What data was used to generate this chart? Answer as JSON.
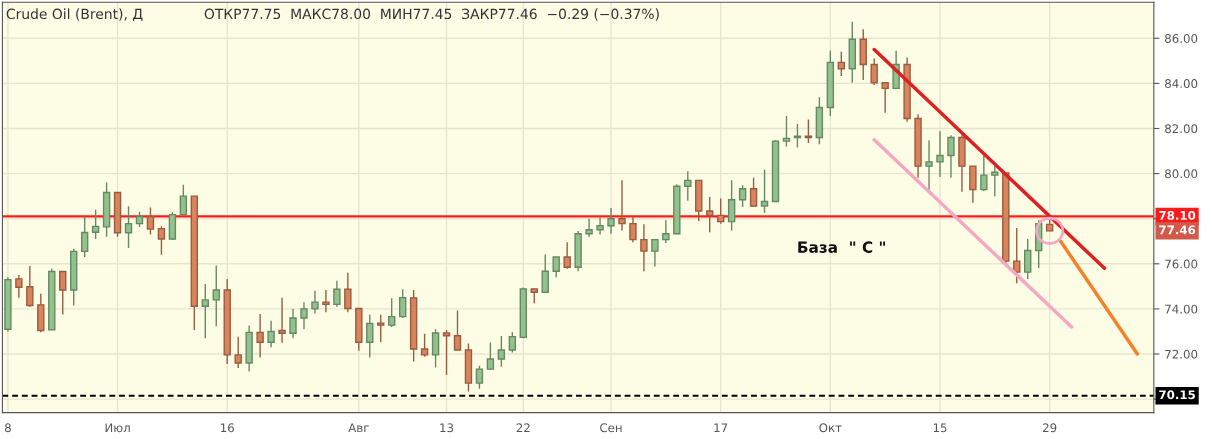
{
  "chart_data": {
    "type": "candlestick",
    "title": "Crude Oil (Brent), Д",
    "subtitle": "ОТКР77.75  МАКС78.00  МИН77.45  ЗАКР77.46  −0.29 (−0.37%)",
    "categories": [
      "8",
      null,
      null,
      null,
      null,
      null,
      null,
      null,
      null,
      null,
      "Июл",
      null,
      null,
      null,
      null,
      null,
      null,
      null,
      null,
      null,
      "16",
      null,
      null,
      null,
      null,
      null,
      null,
      null,
      null,
      null,
      null,
      null,
      "Авг",
      null,
      null,
      null,
      null,
      null,
      null,
      null,
      "13",
      null,
      null,
      null,
      null,
      null,
      null,
      "22",
      null,
      null,
      null,
      null,
      null,
      null,
      null,
      "Сен",
      null,
      null,
      null,
      null,
      null,
      null,
      null,
      null,
      null,
      "17",
      null,
      null,
      null,
      null,
      null,
      null,
      null,
      null,
      null,
      "Окт",
      null,
      null,
      null,
      null,
      null,
      null,
      null,
      null,
      null,
      "15",
      null,
      null,
      null,
      null,
      null,
      null,
      null,
      null,
      null,
      "29",
      null,
      null,
      null,
      null,
      null,
      null,
      null,
      null,
      null
    ],
    "ohlc": [
      [
        73.1,
        75.4,
        73.0,
        75.3
      ],
      [
        75.33,
        75.5,
        74.5,
        74.96
      ],
      [
        74.98,
        75.9,
        74.1,
        74.15
      ],
      [
        74.18,
        74.67,
        72.96,
        73.04
      ],
      [
        73.07,
        75.78,
        73.07,
        75.66
      ],
      [
        75.66,
        75.66,
        73.75,
        74.84
      ],
      [
        74.84,
        76.67,
        74.15,
        76.55
      ],
      [
        76.55,
        78.1,
        76.3,
        77.39
      ],
      [
        77.4,
        78.4,
        77.1,
        77.66
      ],
      [
        77.64,
        79.6,
        77.2,
        79.16
      ],
      [
        79.16,
        79.16,
        77.2,
        77.38
      ],
      [
        77.38,
        78.55,
        76.7,
        77.78
      ],
      [
        77.78,
        78.3,
        77.63,
        78.1
      ],
      [
        78.1,
        78.5,
        77.3,
        77.54
      ],
      [
        77.56,
        77.66,
        76.4,
        77.1
      ],
      [
        77.1,
        78.3,
        77.07,
        78.18
      ],
      [
        78.18,
        79.5,
        78.18,
        79.0
      ],
      [
        79.0,
        79.0,
        73.07,
        74.12
      ],
      [
        74.12,
        75.1,
        72.7,
        74.4
      ],
      [
        74.4,
        75.93,
        73.23,
        74.84
      ],
      [
        74.84,
        75.33,
        71.56,
        71.96
      ],
      [
        71.96,
        72.77,
        71.38,
        71.6
      ],
      [
        71.6,
        73.26,
        71.23,
        72.96
      ],
      [
        72.96,
        73.78,
        71.85,
        72.52
      ],
      [
        72.52,
        73.48,
        72.3,
        73.0
      ],
      [
        73.04,
        74.5,
        72.5,
        72.92
      ],
      [
        72.92,
        74.0,
        72.7,
        73.6
      ],
      [
        73.6,
        74.3,
        73.1,
        74.0
      ],
      [
        74.0,
        74.8,
        73.8,
        74.3
      ],
      [
        74.3,
        74.84,
        73.85,
        74.2
      ],
      [
        74.2,
        75.25,
        74.1,
        74.87
      ],
      [
        74.87,
        75.6,
        73.85,
        74.02
      ],
      [
        74.02,
        74.02,
        72.15,
        72.52
      ],
      [
        72.52,
        73.74,
        71.85,
        73.36
      ],
      [
        73.37,
        73.74,
        72.52,
        73.28
      ],
      [
        73.28,
        74.47,
        73.2,
        73.66
      ],
      [
        73.66,
        74.87,
        73.6,
        74.5
      ],
      [
        74.49,
        74.84,
        71.67,
        72.22
      ],
      [
        72.22,
        72.9,
        71.88,
        71.96
      ],
      [
        71.96,
        73.1,
        71.4,
        72.93
      ],
      [
        72.93,
        73.07,
        71.07,
        72.81
      ],
      [
        72.81,
        73.93,
        72.18,
        72.18
      ],
      [
        72.18,
        72.47,
        70.34,
        70.71
      ],
      [
        70.71,
        71.48,
        70.46,
        71.33
      ],
      [
        71.33,
        72.51,
        71.3,
        71.78
      ],
      [
        71.78,
        72.8,
        71.44,
        72.18
      ],
      [
        72.18,
        72.96,
        72.07,
        72.77
      ],
      [
        72.74,
        74.95,
        72.7,
        74.89
      ],
      [
        74.89,
        74.89,
        74.25,
        74.74
      ],
      [
        74.74,
        76.41,
        74.7,
        75.67
      ],
      [
        75.67,
        76.3,
        75.4,
        76.3
      ],
      [
        76.3,
        76.96,
        75.78,
        75.85
      ],
      [
        75.85,
        77.45,
        75.67,
        77.33
      ],
      [
        77.33,
        78.0,
        77.2,
        77.51
      ],
      [
        77.51,
        78.05,
        77.3,
        77.69
      ],
      [
        77.69,
        78.47,
        77.33,
        78.0
      ],
      [
        78.0,
        79.7,
        77.48,
        77.78
      ],
      [
        77.78,
        78.07,
        76.96,
        77.07
      ],
      [
        77.07,
        77.75,
        75.67,
        76.56
      ],
      [
        76.56,
        77.07,
        75.88,
        77.07
      ],
      [
        77.07,
        77.93,
        76.92,
        77.33
      ],
      [
        77.33,
        79.53,
        77.33,
        79.44
      ],
      [
        79.44,
        80.1,
        78.8,
        79.7
      ],
      [
        79.7,
        79.7,
        77.9,
        78.34
      ],
      [
        78.34,
        78.96,
        77.4,
        78.15
      ],
      [
        78.15,
        78.9,
        77.78,
        77.87
      ],
      [
        77.87,
        79.7,
        77.48,
        78.84
      ],
      [
        78.84,
        79.48,
        78.52,
        79.33
      ],
      [
        79.33,
        79.82,
        78.52,
        78.56
      ],
      [
        78.56,
        80.18,
        78.25,
        78.76
      ],
      [
        78.76,
        81.48,
        78.76,
        81.44
      ],
      [
        81.44,
        82.55,
        81.2,
        81.56
      ],
      [
        81.6,
        82.2,
        81.16,
        81.66
      ],
      [
        81.66,
        82.4,
        81.36,
        81.6
      ],
      [
        81.6,
        83.38,
        81.3,
        82.93
      ],
      [
        82.93,
        85.45,
        82.55,
        84.93
      ],
      [
        84.93,
        85.4,
        84.33,
        84.65
      ],
      [
        84.65,
        86.73,
        84.03,
        85.96
      ],
      [
        85.96,
        86.4,
        84.15,
        84.84
      ],
      [
        84.84,
        85.1,
        83.93,
        84.03
      ],
      [
        84.03,
        84.03,
        82.7,
        83.78
      ],
      [
        83.78,
        85.45,
        83.78,
        84.84
      ],
      [
        84.84,
        85.15,
        82.3,
        82.44
      ],
      [
        82.44,
        82.63,
        79.82,
        80.33
      ],
      [
        80.33,
        81.48,
        79.26,
        80.52
      ],
      [
        80.52,
        81.88,
        79.85,
        80.8
      ],
      [
        80.8,
        81.7,
        79.82,
        81.6
      ],
      [
        81.6,
        81.7,
        79.19,
        80.33
      ],
      [
        80.33,
        80.33,
        78.71,
        79.29
      ],
      [
        79.29,
        80.81,
        79.23,
        79.93
      ],
      [
        79.93,
        80.37,
        79.0,
        80.06
      ],
      [
        80.03,
        80.03,
        76.0,
        76.12
      ],
      [
        76.12,
        77.59,
        75.14,
        75.63
      ],
      [
        75.63,
        77.1,
        75.33,
        76.59
      ],
      [
        76.59,
        77.93,
        75.81,
        77.78
      ],
      [
        77.75,
        78.0,
        77.45,
        77.46
      ],
      null,
      null,
      null,
      null,
      null,
      null,
      null,
      null,
      null
    ],
    "colors": [
      "#91c28d",
      "#d9845c",
      "#d9845c",
      "#d9845c",
      "#91c28d",
      "#d9845c",
      "#91c28d",
      "#91c28d",
      "#91c28d",
      "#91c28d",
      "#d9845c",
      "#91c28d",
      "#91c28d",
      "#d9845c",
      "#d9845c",
      "#91c28d",
      "#91c28d",
      "#d9845c",
      "#91c28d",
      "#91c28d",
      "#d9845c",
      "#d9845c",
      "#91c28d",
      "#d9845c",
      "#91c28d",
      "#d9845c",
      "#91c28d",
      "#91c28d",
      "#91c28d",
      "#d9845c",
      "#91c28d",
      "#d9845c",
      "#d9845c",
      "#91c28d",
      "#d9845c",
      "#91c28d",
      "#91c28d",
      "#d9845c",
      "#d9845c",
      "#91c28d",
      "#d9845c",
      "#d9845c",
      "#d9845c",
      "#91c28d",
      "#91c28d",
      "#91c28d",
      "#91c28d",
      "#91c28d",
      "#d9845c",
      "#91c28d",
      "#91c28d",
      "#d9845c",
      "#91c28d",
      "#91c28d",
      "#91c28d",
      "#91c28d",
      "#d9845c",
      "#d9845c",
      "#d9845c",
      "#91c28d",
      "#91c28d",
      "#91c28d",
      "#91c28d",
      "#d9845c",
      "#d9845c",
      "#d9845c",
      "#91c28d",
      "#91c28d",
      "#d9845c",
      "#91c28d",
      "#91c28d",
      "#91c28d",
      "#91c28d",
      "#d9845c",
      "#91c28d",
      "#91c28d",
      "#d9845c",
      "#91c28d",
      "#d9845c",
      "#d9845c",
      "#d9845c",
      "#91c28d",
      "#d9845c",
      "#d9845c",
      "#91c28d",
      "#91c28d",
      "#91c28d",
      "#d9845c",
      "#d9845c",
      "#91c28d",
      "#91c28d",
      "#d9845c",
      "#d9845c",
      "#91c28d",
      "#91c28d",
      "#d9845c",
      null,
      null,
      null,
      null,
      null,
      null,
      null,
      null,
      null
    ],
    "series": [
      {
        "type": "line",
        "color": "#dd2020",
        "values": [
          null,
          null,
          null,
          null,
          null,
          null,
          null,
          null,
          null,
          null,
          null,
          null,
          null,
          null,
          null,
          null,
          null,
          null,
          null,
          null,
          null,
          null,
          null,
          null,
          null,
          null,
          null,
          null,
          null,
          null,
          null,
          null,
          null,
          null,
          null,
          null,
          null,
          null,
          null,
          null,
          null,
          null,
          null,
          null,
          null,
          null,
          null,
          null,
          null,
          null,
          null,
          null,
          null,
          null,
          null,
          null,
          null,
          null,
          null,
          null,
          null,
          null,
          null,
          null,
          null,
          null,
          null,
          null,
          null,
          null,
          null,
          null,
          null,
          null,
          null,
          null,
          null,
          null,
          null,
          85.5,
          null,
          null,
          null,
          null,
          null,
          null,
          null,
          null,
          null,
          null,
          null,
          null,
          null,
          null,
          null,
          null,
          null,
          null,
          null,
          null,
          75.8,
          null,
          null,
          null,
          null
        ]
      },
      {
        "type": "line",
        "color": "#f4a8c4",
        "values": [
          null,
          null,
          null,
          null,
          null,
          null,
          null,
          null,
          null,
          null,
          null,
          null,
          null,
          null,
          null,
          null,
          null,
          null,
          null,
          null,
          null,
          null,
          null,
          null,
          null,
          null,
          null,
          null,
          null,
          null,
          null,
          null,
          null,
          null,
          null,
          null,
          null,
          null,
          null,
          null,
          null,
          null,
          null,
          null,
          null,
          null,
          null,
          null,
          null,
          null,
          null,
          null,
          null,
          null,
          null,
          null,
          null,
          null,
          null,
          null,
          null,
          null,
          null,
          null,
          null,
          null,
          null,
          null,
          null,
          null,
          null,
          null,
          null,
          null,
          null,
          null,
          null,
          null,
          null,
          81.5,
          null,
          null,
          null,
          null,
          null,
          null,
          null,
          null,
          null,
          null,
          null,
          null,
          null,
          null,
          null,
          null,
          null,
          73.2,
          null,
          null,
          null,
          null,
          null,
          null,
          null
        ]
      },
      {
        "type": "line",
        "color": "#f5822a",
        "values": [
          null,
          null,
          null,
          null,
          null,
          null,
          null,
          null,
          null,
          null,
          null,
          null,
          null,
          null,
          null,
          null,
          null,
          null,
          null,
          null,
          null,
          null,
          null,
          null,
          null,
          null,
          null,
          null,
          null,
          null,
          null,
          null,
          null,
          null,
          null,
          null,
          null,
          null,
          null,
          null,
          null,
          null,
          null,
          null,
          null,
          null,
          null,
          null,
          null,
          null,
          null,
          null,
          null,
          null,
          null,
          null,
          null,
          null,
          null,
          null,
          null,
          null,
          null,
          null,
          null,
          null,
          null,
          null,
          null,
          null,
          null,
          null,
          null,
          null,
          null,
          null,
          null,
          null,
          null,
          null,
          null,
          null,
          null,
          null,
          null,
          null,
          null,
          null,
          null,
          null,
          null,
          null,
          null,
          null,
          null,
          null,
          77.0,
          null,
          null,
          null,
          null,
          null,
          null,
          72.0,
          null
        ]
      }
    ],
    "ylim": [
      69.4,
      87.6
    ],
    "yticks": [
      {
        "value": 70,
        "label": null
      },
      {
        "value": 72,
        "label": "72.00"
      },
      {
        "value": 74,
        "label": "74.00"
      },
      {
        "value": 76,
        "label": "76.00"
      },
      {
        "value": 78,
        "label": null
      },
      {
        "value": 80,
        "label": "80.00"
      },
      {
        "value": 82,
        "label": "82.00"
      },
      {
        "value": 84,
        "label": "84.00"
      },
      {
        "value": 86,
        "label": "86.00"
      }
    ],
    "ref_lines": [
      {
        "axis": "y",
        "value": 78.1,
        "label": "78.10",
        "color": "#ff1a1a",
        "line_style": "solid"
      },
      {
        "axis": "y",
        "value": 70.15,
        "label": "70.15",
        "color": "#000000",
        "line_style": "dashed"
      }
    ],
    "annotations": [
      "База  \" С \"",
      "77.46"
    ],
    "grid": true
  }
}
